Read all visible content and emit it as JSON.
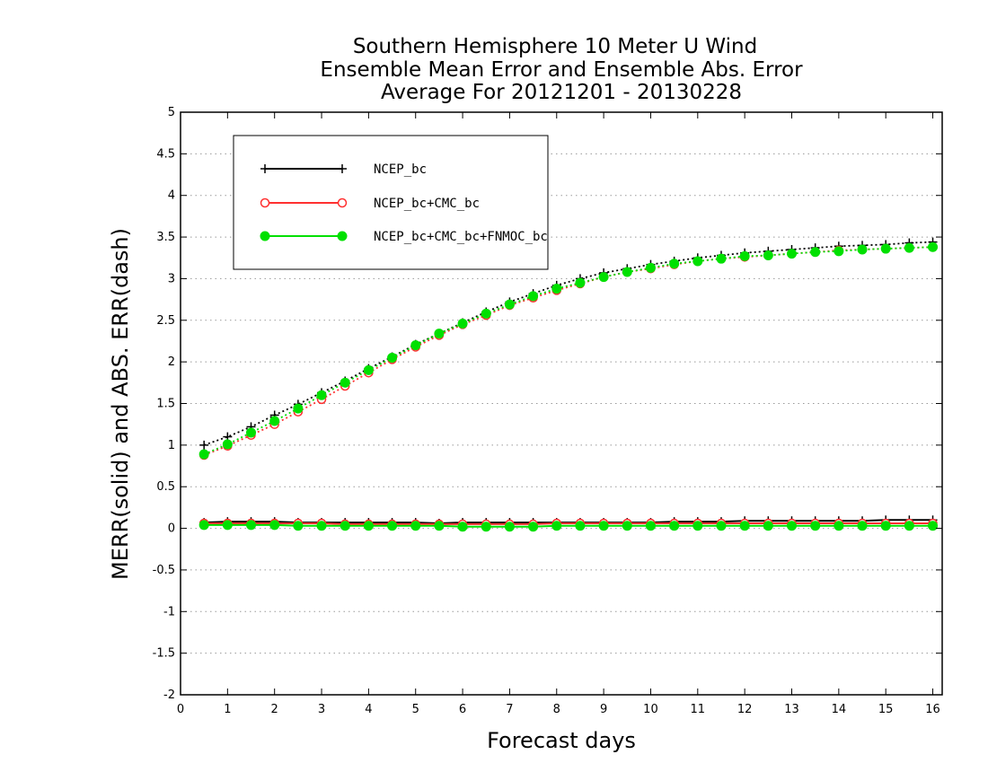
{
  "chart_data": {
    "type": "line",
    "title_lines": [
      "Southern Hemisphere 10 Meter U Wind",
      "Ensemble Mean Error and Ensemble Abs. Error",
      "Average For 20121201 - 20130228"
    ],
    "xlabel": "Forecast days",
    "ylabel": "MERR(solid) and ABS. ERR(dash)",
    "xlim": [
      0,
      16.2
    ],
    "ylim": [
      -2,
      5
    ],
    "xticks": [
      "0",
      "1",
      "2",
      "3",
      "4",
      "5",
      "6",
      "7",
      "8",
      "9",
      "10",
      "11",
      "12",
      "13",
      "14",
      "15",
      "16"
    ],
    "yticks": [
      "-2",
      "-1.5",
      "-1",
      "-0.5",
      "0",
      "0.5",
      "1",
      "1.5",
      "2",
      "2.5",
      "3",
      "3.5",
      "4",
      "4.5",
      "5"
    ],
    "grid": "horizontal dotted",
    "legend_position": "top-left",
    "x": [
      0.5,
      1,
      1.5,
      2,
      2.5,
      3,
      3.5,
      4,
      4.5,
      5,
      5.5,
      6,
      6.5,
      7,
      7.5,
      8,
      8.5,
      9,
      9.5,
      10,
      10.5,
      11,
      11.5,
      12,
      12.5,
      13,
      13.5,
      14,
      14.5,
      15,
      15.5,
      16
    ],
    "series": [
      {
        "name": "NCEP_bc",
        "color": "#000000",
        "marker": "plus",
        "merr": [
          0.07,
          0.08,
          0.08,
          0.08,
          0.07,
          0.07,
          0.07,
          0.07,
          0.07,
          0.07,
          0.06,
          0.07,
          0.07,
          0.07,
          0.07,
          0.07,
          0.07,
          0.07,
          0.07,
          0.07,
          0.08,
          0.08,
          0.08,
          0.09,
          0.09,
          0.09,
          0.09,
          0.09,
          0.09,
          0.1,
          0.1,
          0.1
        ],
        "abs_err": [
          1.0,
          1.1,
          1.22,
          1.36,
          1.49,
          1.63,
          1.77,
          1.92,
          2.06,
          2.21,
          2.34,
          2.47,
          2.6,
          2.72,
          2.82,
          2.92,
          3.0,
          3.07,
          3.12,
          3.17,
          3.21,
          3.25,
          3.28,
          3.31,
          3.33,
          3.35,
          3.37,
          3.39,
          3.4,
          3.41,
          3.43,
          3.44
        ]
      },
      {
        "name": "NCEP_bc+CMC_bc",
        "color": "#ff3030",
        "marker": "open-circle",
        "merr": [
          0.06,
          0.06,
          0.06,
          0.06,
          0.06,
          0.06,
          0.05,
          0.05,
          0.05,
          0.05,
          0.05,
          0.05,
          0.05,
          0.05,
          0.05,
          0.06,
          0.06,
          0.06,
          0.06,
          0.06,
          0.06,
          0.06,
          0.06,
          0.06,
          0.06,
          0.06,
          0.06,
          0.06,
          0.06,
          0.06,
          0.06,
          0.06
        ],
        "abs_err": [
          0.88,
          0.99,
          1.12,
          1.25,
          1.4,
          1.55,
          1.71,
          1.87,
          2.03,
          2.18,
          2.32,
          2.45,
          2.56,
          2.68,
          2.77,
          2.86,
          2.94,
          3.02,
          3.08,
          3.12,
          3.17,
          3.21,
          3.24,
          3.26,
          3.28,
          3.3,
          3.32,
          3.34,
          3.35,
          3.36,
          3.37,
          3.38
        ]
      },
      {
        "name": "NCEP_bc+CMC_bc+FNMOC_bc",
        "color": "#00e000",
        "marker": "filled-circle",
        "merr": [
          0.04,
          0.04,
          0.04,
          0.04,
          0.03,
          0.03,
          0.03,
          0.03,
          0.03,
          0.03,
          0.03,
          0.02,
          0.02,
          0.02,
          0.02,
          0.03,
          0.03,
          0.03,
          0.03,
          0.03,
          0.03,
          0.03,
          0.03,
          0.03,
          0.03,
          0.03,
          0.03,
          0.03,
          0.03,
          0.03,
          0.03,
          0.03
        ],
        "abs_err": [
          0.89,
          1.01,
          1.15,
          1.29,
          1.44,
          1.6,
          1.75,
          1.9,
          2.05,
          2.2,
          2.34,
          2.46,
          2.58,
          2.69,
          2.79,
          2.88,
          2.95,
          3.02,
          3.08,
          3.13,
          3.18,
          3.21,
          3.24,
          3.27,
          3.28,
          3.3,
          3.32,
          3.33,
          3.35,
          3.36,
          3.37,
          3.38
        ]
      }
    ]
  }
}
